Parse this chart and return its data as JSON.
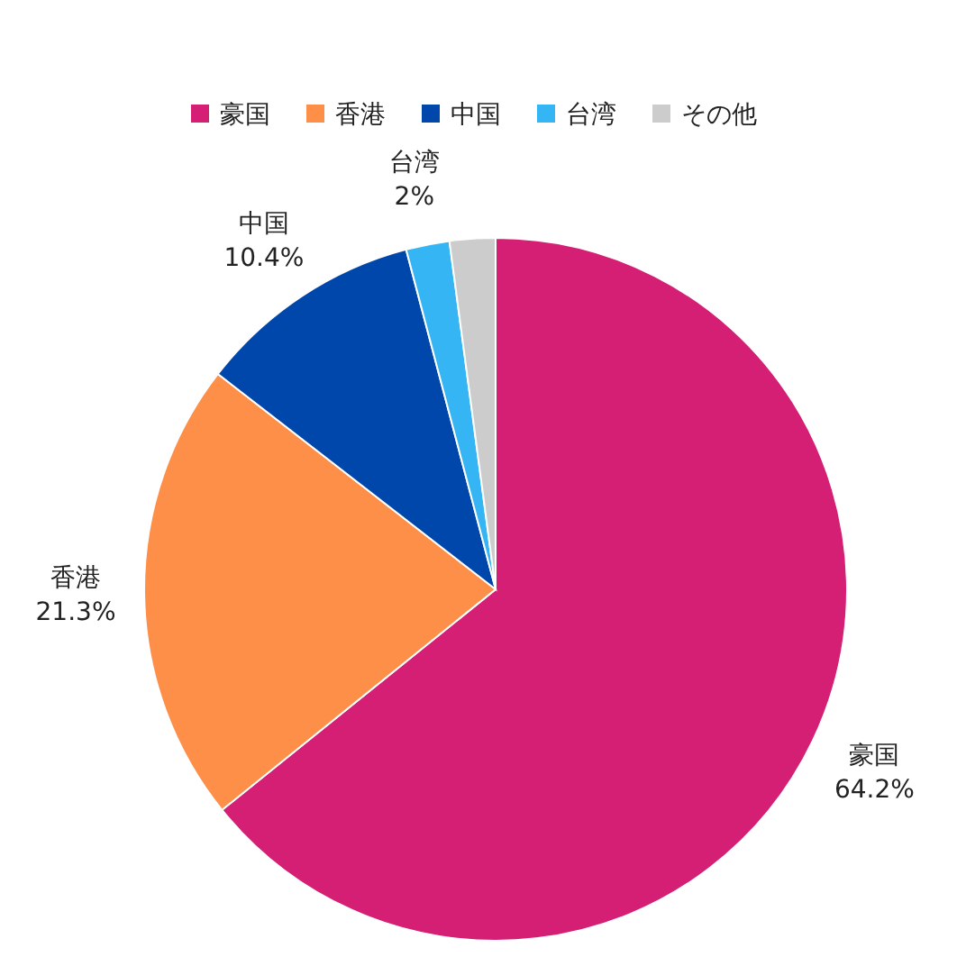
{
  "chart_data": {
    "type": "pie",
    "categories": [
      "豪国",
      "香港",
      "中国",
      "台湾",
      "その他"
    ],
    "values": [
      64.2,
      21.3,
      10.4,
      2,
      2.1
    ],
    "colors": [
      "#d41f74",
      "#fd8f48",
      "#0047ab",
      "#36b5f5",
      "#cccccc"
    ],
    "value_labels": [
      "64.2%",
      "21.3%",
      "10.4%",
      "2%",
      null
    ],
    "legend": "top"
  }
}
